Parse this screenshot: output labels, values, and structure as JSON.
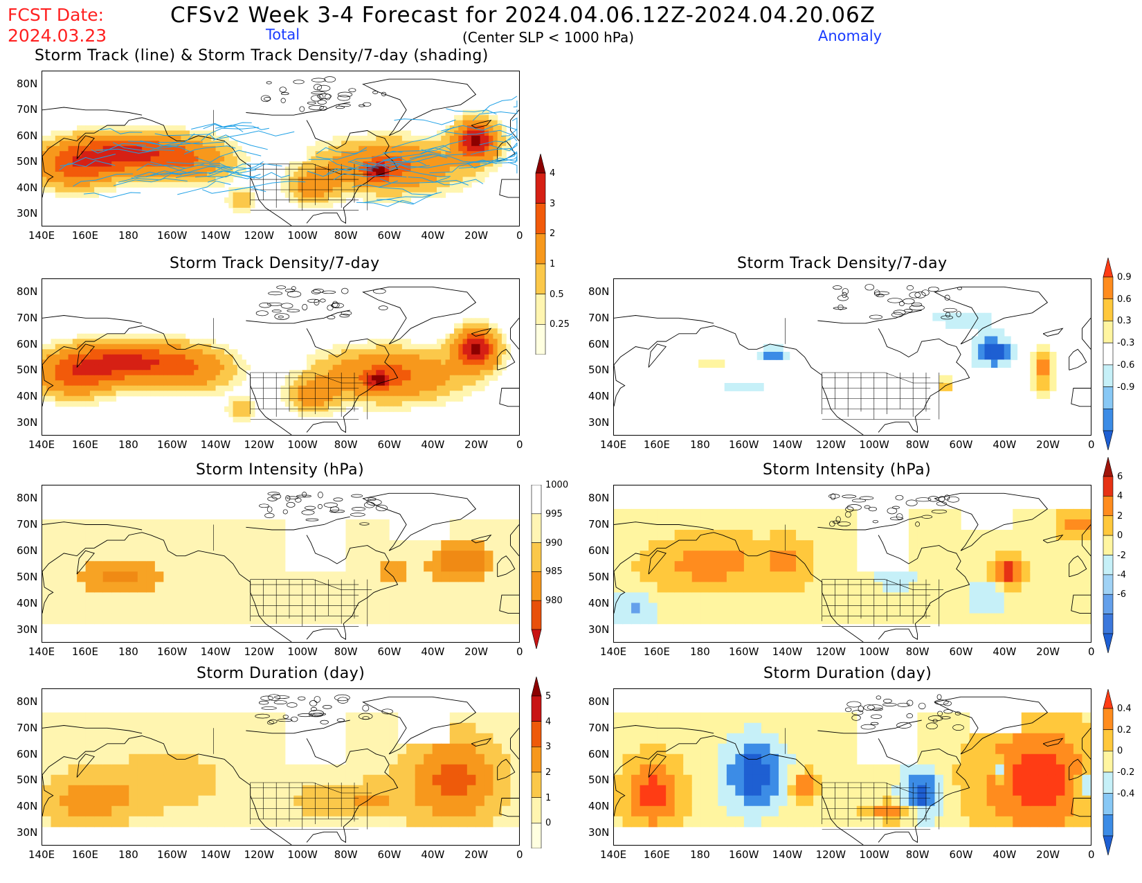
{
  "header": {
    "fcst_label": "FCST Date:",
    "fcst_date": "2024.03.23",
    "title": "CFSv2 Week 3-4 Forecast for 2024.04.06.12Z-2024.04.20.06Z",
    "total_label": "Total",
    "criterion": "(Center SLP < 1000 hPa)",
    "anomaly_label": "Anomaly"
  },
  "axes": {
    "lon_labels": [
      "140E",
      "160E",
      "180",
      "160W",
      "140W",
      "120W",
      "100W",
      "80W",
      "60W",
      "40W",
      "20W",
      "0"
    ],
    "lat_labels": [
      "80N",
      "70N",
      "60N",
      "50N",
      "40N",
      "30N"
    ]
  },
  "panels": {
    "track": {
      "title": "Storm Track (line) & Storm Track Density/7-day (shading)"
    },
    "density_total": {
      "title": "Storm Track Density/7-day"
    },
    "density_anom": {
      "title": "Storm Track Density/7-day"
    },
    "intensity_total": {
      "title": "Storm Intensity (hPa)"
    },
    "intensity_anom": {
      "title": "Storm Intensity (hPa)"
    },
    "duration_total": {
      "title": "Storm Duration (day)"
    },
    "duration_anom": {
      "title": "Storm Duration (day)"
    }
  },
  "colorbars": {
    "density_total": {
      "labels": [
        "4",
        "3",
        "2",
        "1",
        "0.5",
        "0.25"
      ],
      "colors": [
        "#8b0000",
        "#d62014",
        "#f25a0a",
        "#f7981c",
        "#fbc84a",
        "#fff5b0",
        "#ffffe0"
      ]
    },
    "density_anom": {
      "labels": [
        "0.9",
        "0.6",
        "0.3",
        "-0.3",
        "-0.6",
        "-0.9"
      ],
      "colors": [
        "#ff3c14",
        "#ff8c1e",
        "#ffc83c",
        "#fff5a0",
        "#ffffff",
        "#c6f0f8",
        "#88c8f5",
        "#3c8ce6",
        "#1e5fd2"
      ]
    },
    "intensity_total": {
      "labels": [
        "1000",
        "995",
        "990",
        "985",
        "980"
      ],
      "colors": [
        "#ffffff",
        "#fff5b4",
        "#fbc84a",
        "#f7981c",
        "#e8500a",
        "#c81414"
      ]
    },
    "intensity_anom": {
      "labels": [
        "6",
        "4",
        "2",
        "0",
        "-2",
        "-4",
        "-6"
      ],
      "colors": [
        "#a0140a",
        "#e63214",
        "#ff8c1e",
        "#ffc83c",
        "#fff5a0",
        "#c6f0f8",
        "#a0d2f5",
        "#64a0eb",
        "#3c78dc",
        "#1e5fd2"
      ]
    },
    "duration_total": {
      "labels": [
        "5",
        "4",
        "3",
        "2",
        "1",
        "0"
      ],
      "colors": [
        "#8b0000",
        "#c81414",
        "#ee5a0a",
        "#f7981c",
        "#fbc84a",
        "#fff5b0",
        "#ffffe0"
      ]
    },
    "duration_anom": {
      "labels": [
        "0.4",
        "0.2",
        "0",
        "-0.2",
        "-0.4"
      ],
      "colors": [
        "#ff3c14",
        "#ff8c1e",
        "#ffc83c",
        "#fff5a0",
        "#c6f0f8",
        "#88c8f5",
        "#3c8ce6",
        "#1e5fd2"
      ]
    }
  },
  "colors": {
    "fcst_red": "#ff2020",
    "header_blue": "#1a3cff",
    "track_line": "#1ea0e6"
  }
}
